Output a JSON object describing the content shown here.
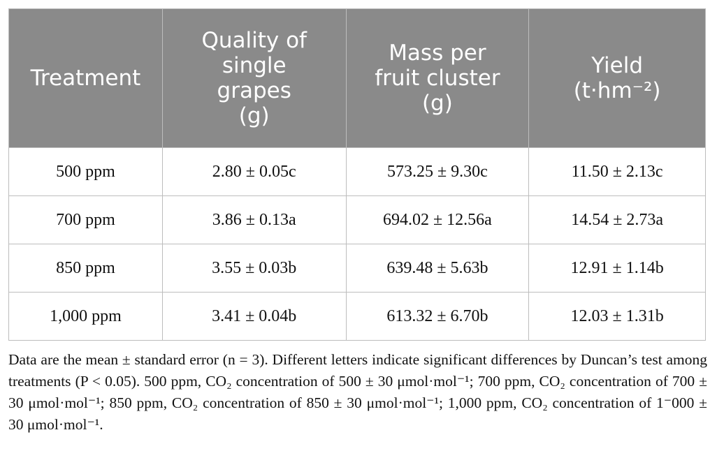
{
  "table": {
    "header": [
      [
        "Treatment"
      ],
      [
        "Quality of",
        "single",
        "grapes",
        "(g)"
      ],
      [
        "Mass per",
        "fruit cluster",
        "(g)"
      ],
      [
        "Yield",
        "(t·hm⁻²)"
      ]
    ],
    "rows": [
      [
        "500 ppm",
        "2.80 ± 0.05c",
        "573.25 ± 9.30c",
        "11.50 ± 2.13c"
      ],
      [
        "700 ppm",
        "3.86 ± 0.13a",
        "694.02 ± 12.56a",
        "14.54 ± 2.73a"
      ],
      [
        "850 ppm",
        "3.55 ± 0.03b",
        "639.48 ± 5.63b",
        "12.91 ± 1.14b"
      ],
      [
        "1,000 ppm",
        "3.41 ± 0.04b",
        "613.32 ± 6.70b",
        "12.03 ± 1.31b"
      ]
    ]
  },
  "footnote": "Data are the mean ± standard error (n = 3). Different letters indicate significant differences by Duncan’s test among treatments (P < 0.05). 500 ppm, CO₂ concentration of 500 ± 30 μmol·mol⁻¹; 700 ppm, CO₂ concentration of 700 ± 30 μmol·mol⁻¹; 850 ppm, CO₂ concentration of 850 ± 30 μmol·mol⁻¹; 1,000 ppm, CO₂ concentration of 1⁻000 ± 30 μmol·mol⁻¹."
}
